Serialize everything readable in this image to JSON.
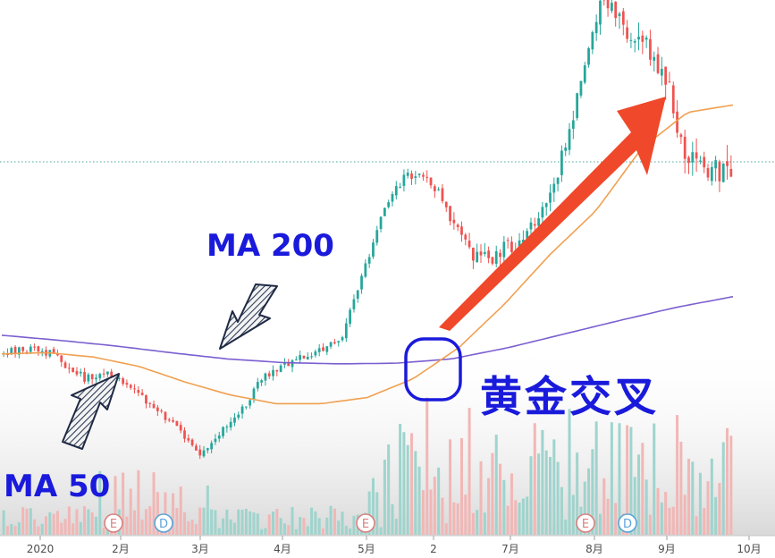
{
  "chart_data": {
    "type": "candlestick",
    "x_axis_labels": [
      "2020",
      "2月",
      "3月",
      "4月",
      "5月",
      "2",
      "7月",
      "8月",
      "9月",
      "10月"
    ],
    "event_markers": [
      "E",
      "D",
      "E",
      "E",
      "D"
    ],
    "annotations": {
      "ma200": "MA 200",
      "ma50": "MA 50",
      "cross": "黄金交叉"
    },
    "series": [
      {
        "name": "MA 200",
        "color": "#7b5fd0"
      },
      {
        "name": "MA 50",
        "color": "#f0a050"
      }
    ],
    "colors": {
      "up": "#26a69a",
      "down": "#ef5350",
      "volume_up": "#9fd4cd",
      "volume_down": "#f1b7b6",
      "accent_arrow": "#f0482a",
      "annotation": "#1a1adc"
    },
    "close_path": [
      44,
      45,
      44.5,
      44,
      42,
      40,
      41,
      40,
      38,
      36,
      34,
      31,
      28,
      30,
      33,
      36,
      40,
      42,
      43,
      44,
      45,
      47,
      55,
      63,
      70,
      73,
      72,
      70,
      64,
      60,
      59,
      61,
      62,
      66,
      71,
      80,
      92,
      100,
      98,
      95,
      93,
      88,
      77,
      74,
      73,
      74
    ],
    "ma200_path": [
      47,
      46.2,
      45.3,
      44.2,
      43.2,
      42.6,
      42.4,
      42.5,
      43.2,
      45,
      47.2,
      49.4,
      51.5,
      53.2
    ],
    "ma50_path": [
      44,
      44.2,
      43.5,
      42,
      39.5,
      37.4,
      36,
      36,
      37,
      40,
      45,
      52,
      60,
      67,
      77,
      82.8,
      84
    ]
  }
}
